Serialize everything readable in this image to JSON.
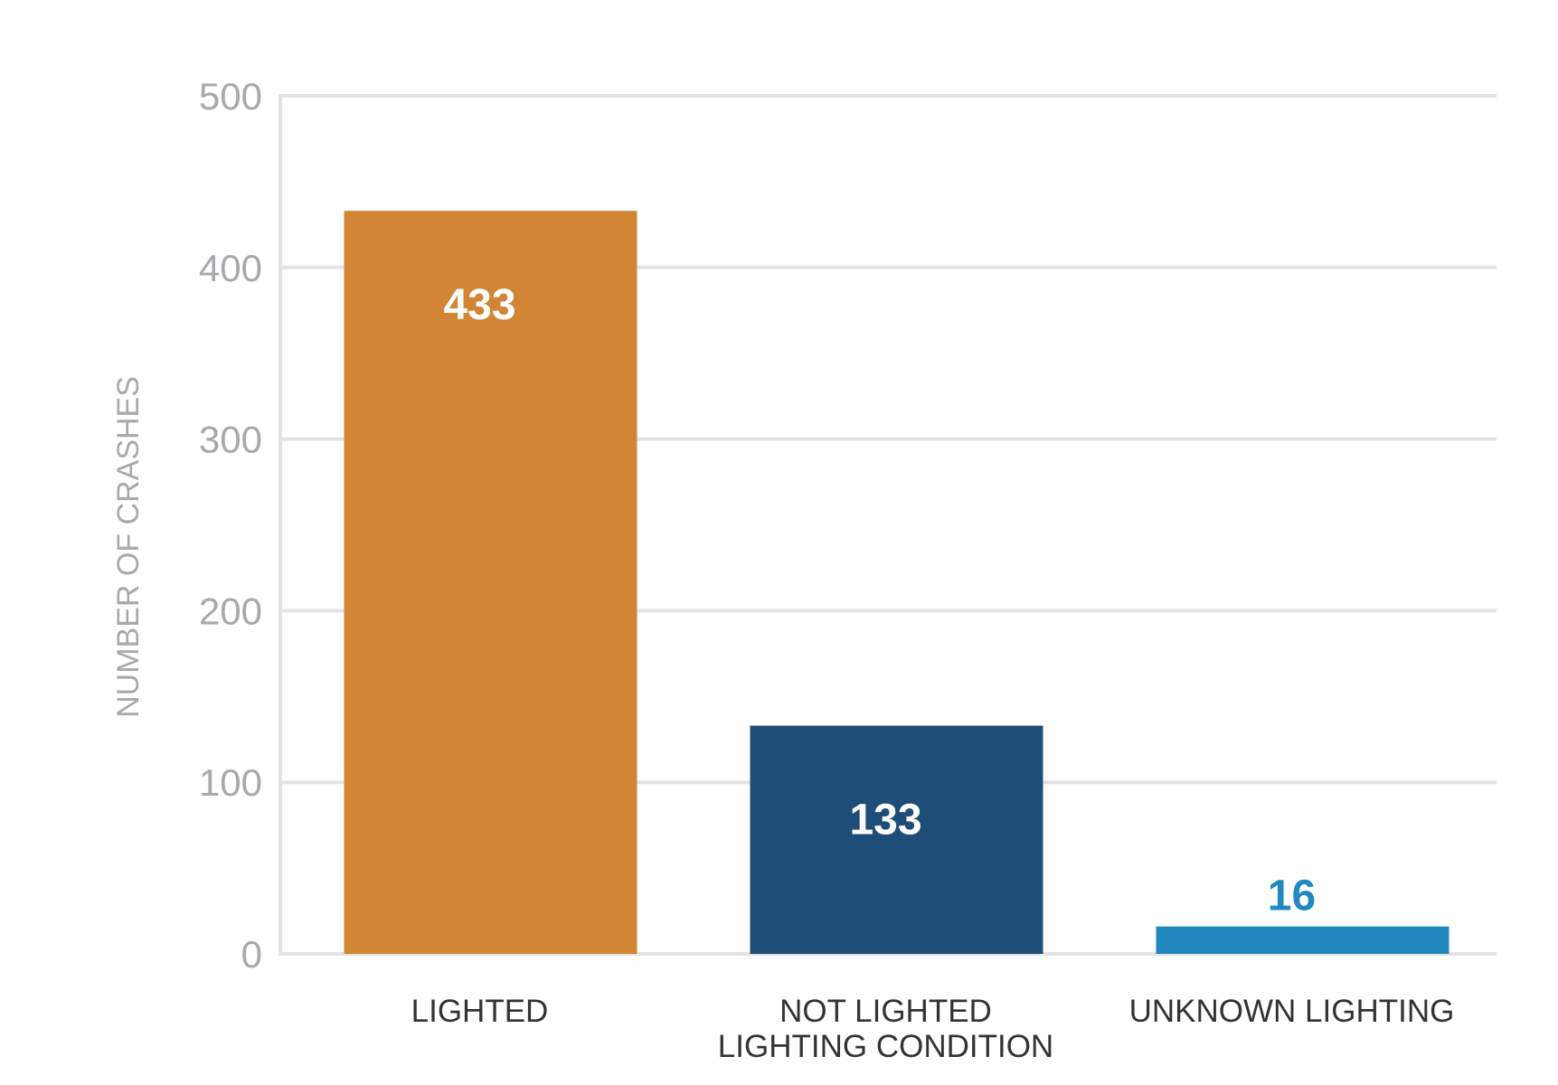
{
  "chart_data": {
    "type": "bar",
    "title": "",
    "xlabel": "",
    "ylabel": "NUMBER OF CRASHES",
    "categories": [
      [
        "LIGHTED"
      ],
      [
        "NOT LIGHTED",
        "LIGHTING CONDITION"
      ],
      [
        "UNKNOWN LIGHTING"
      ]
    ],
    "values": [
      433,
      133,
      16
    ],
    "data_labels": [
      "433",
      "133",
      "16"
    ],
    "bar_colors": [
      "#d28535",
      "#1e4d78",
      "#2189bf"
    ],
    "data_label_colors": [
      "#ffffff",
      "#ffffff",
      "#2189bf"
    ],
    "data_label_placement": [
      "inside-top",
      "inside-top",
      "above"
    ],
    "ylim": [
      0,
      500
    ],
    "yticks": [
      0,
      100,
      200,
      300,
      400,
      500
    ],
    "ytick_labels": [
      "0",
      "100",
      "200",
      "300",
      "400",
      "500"
    ],
    "grid": true,
    "gridline_color": "#e3e3e3",
    "legend": "none"
  }
}
